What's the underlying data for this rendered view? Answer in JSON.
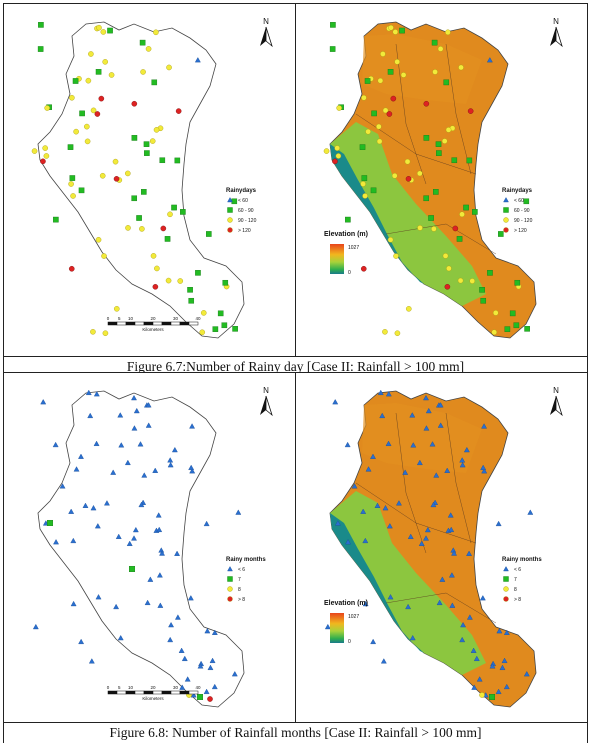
{
  "figures": [
    {
      "caption": "Figure 6.7:Number of Rainy day [Case II: Rainfall > 100 mm]",
      "legend_title": "Rainydays",
      "legend_items": [
        {
          "symbol": "triangle",
          "color": "#2a6fcf",
          "label": "< 60"
        },
        {
          "symbol": "square",
          "color": "#22bb22",
          "label": "60 - 90"
        },
        {
          "symbol": "circle",
          "color": "#f2ea3a",
          "label": "90 - 120"
        },
        {
          "symbol": "circle",
          "color": "#dd2222",
          "label": "> 120"
        }
      ]
    },
    {
      "caption": "Figure 6.8: Number of Rainfall months [Case II: Rainfall > 100 mm]",
      "legend_title": "Rainy months",
      "legend_items": [
        {
          "symbol": "triangle",
          "color": "#2a6fcf",
          "label": "< 6"
        },
        {
          "symbol": "square",
          "color": "#22bb22",
          "label": "7"
        },
        {
          "symbol": "circle",
          "color": "#f2ea3a",
          "label": "8"
        },
        {
          "symbol": "circle",
          "color": "#dd2222",
          "label": "> 8"
        }
      ]
    }
  ],
  "north_label": "N",
  "elevation": {
    "title": "Elevation (m)",
    "max": "1027",
    "min": "0"
  },
  "scalebar": {
    "unit": "Kilometers",
    "ticks": [
      "0",
      "5",
      "10",
      "20",
      "30",
      "40"
    ]
  },
  "colors": {
    "triangle": "#2a6fcf",
    "square": "#22bb22",
    "yellow": "#f2ea3a",
    "red": "#dd2222",
    "elev_low": "#1a8a8a",
    "elev_mid": "#8cc63f",
    "elev_high": "#e08a1e"
  }
}
